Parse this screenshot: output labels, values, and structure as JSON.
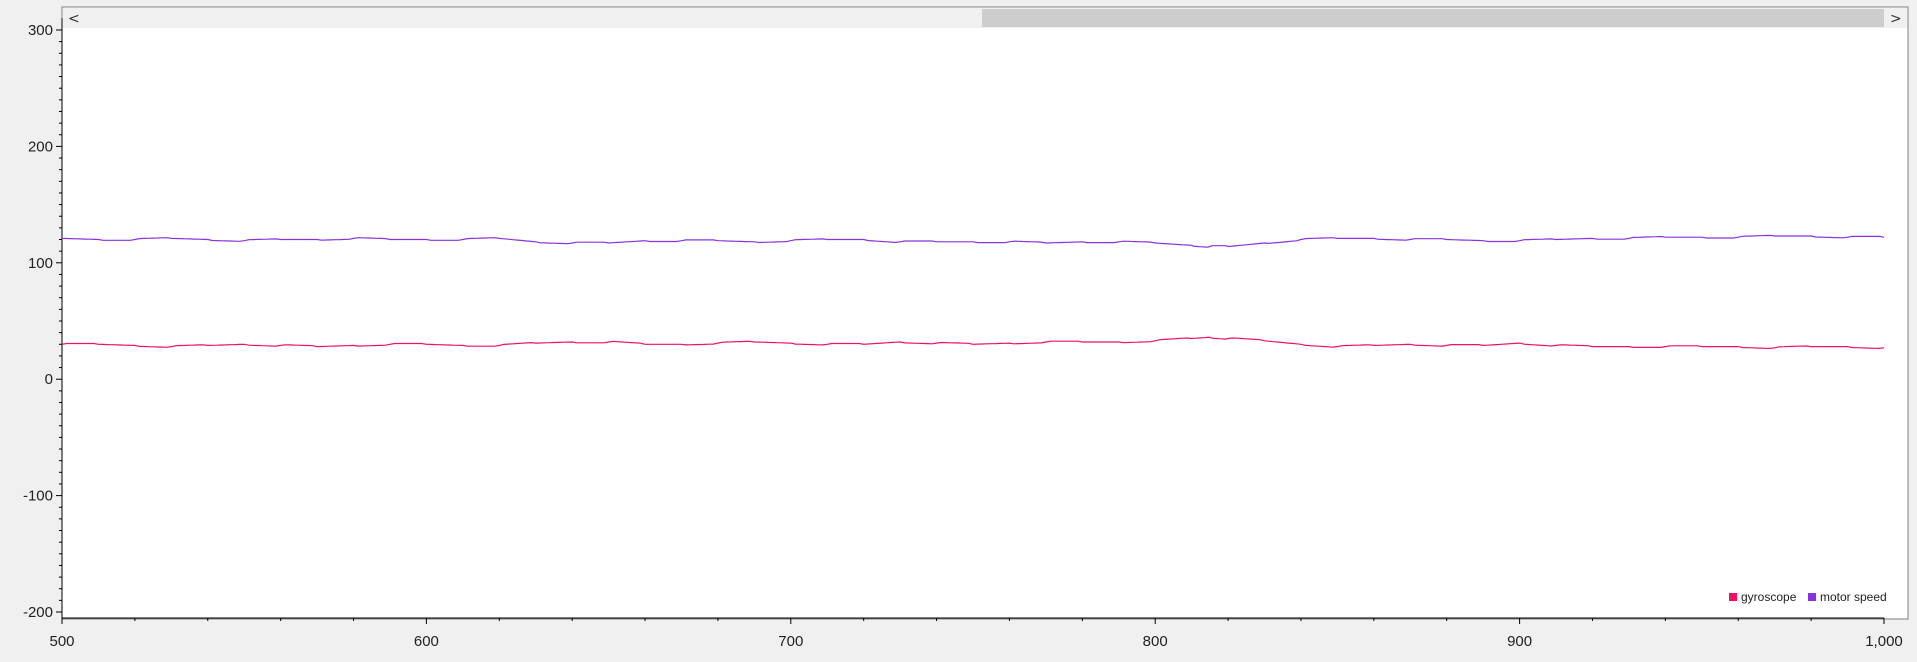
{
  "chart_data": {
    "type": "line",
    "title": "",
    "xlabel": "",
    "ylabel": "",
    "xlim": [
      500,
      1000
    ],
    "ylim": [
      -200,
      300
    ],
    "x_ticks": [
      500,
      600,
      700,
      800,
      900,
      1000
    ],
    "x_tick_labels": [
      "500",
      "600",
      "700",
      "800",
      "900",
      "1,000"
    ],
    "y_ticks": [
      300,
      200,
      100,
      0,
      -100,
      -200
    ],
    "y_tick_labels": [
      "300",
      "200",
      "100",
      "0",
      "-100",
      "-200"
    ],
    "grid": false,
    "legend_position": "bottom-right",
    "x": [
      500,
      510,
      520,
      530,
      540,
      550,
      560,
      570,
      580,
      590,
      600,
      610,
      620,
      630,
      640,
      650,
      660,
      670,
      680,
      690,
      700,
      710,
      720,
      730,
      740,
      750,
      760,
      770,
      780,
      790,
      800,
      810,
      815,
      820,
      830,
      840,
      850,
      860,
      870,
      880,
      890,
      900,
      910,
      920,
      930,
      940,
      950,
      960,
      970,
      980,
      990,
      1000
    ],
    "series": [
      {
        "name": "gyroscope",
        "color": "#ee1166",
        "values": [
          30,
          30,
          29,
          28,
          29,
          30,
          29,
          28,
          29,
          30,
          30,
          29,
          29,
          31,
          32,
          32,
          30,
          30,
          31,
          32,
          31,
          30,
          30,
          32,
          31,
          30,
          31,
          32,
          32,
          32,
          33,
          35,
          36,
          35,
          33,
          30,
          28,
          29,
          30,
          29,
          29,
          31,
          29,
          28,
          28,
          28,
          28,
          28,
          27,
          28,
          28,
          27
        ]
      },
      {
        "name": "motor speed",
        "color": "#8833dd",
        "values": [
          121,
          120,
          120,
          121,
          120,
          119,
          120,
          120,
          121,
          120,
          120,
          120,
          121,
          118,
          117,
          117,
          119,
          119,
          119,
          118,
          119,
          120,
          120,
          118,
          118,
          118,
          118,
          117,
          118,
          118,
          117,
          115,
          114,
          114,
          117,
          120,
          121,
          121,
          120,
          120,
          119,
          119,
          120,
          121,
          121,
          122,
          122,
          122,
          123,
          123,
          122,
          122
        ]
      }
    ]
  },
  "scrollbar": {
    "left_arrow": "<",
    "right_arrow": ">",
    "thumb_start": 0.5,
    "thumb_end": 1.0
  }
}
